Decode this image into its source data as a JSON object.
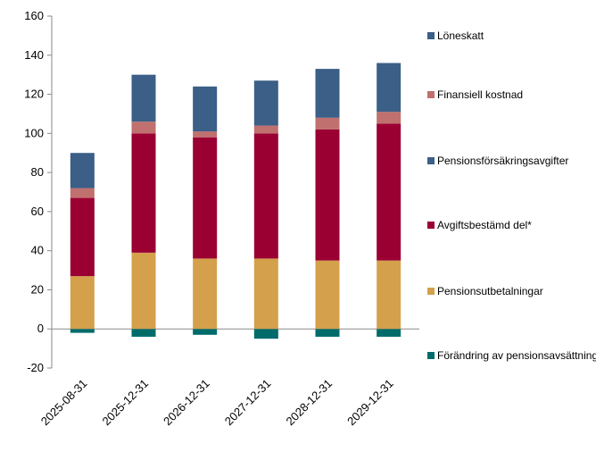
{
  "chart_data": {
    "type": "bar",
    "stacked": true,
    "categories": [
      "2025-08-31",
      "2025-12-31",
      "2026-12-31",
      "2027-12-31",
      "2028-12-31",
      "2029-12-31"
    ],
    "ylim": [
      -20,
      160
    ],
    "yticks": [
      -20,
      0,
      20,
      40,
      60,
      80,
      100,
      120,
      140,
      160
    ],
    "grid": false,
    "legend_position": "right",
    "series": [
      {
        "name": "Förändring av pensionsavsättning",
        "color": "#006b6b",
        "values": [
          -2,
          -4,
          -3,
          -5,
          -4,
          -4
        ]
      },
      {
        "name": "Pensionsutbetalningar",
        "color": "#d4a04c",
        "values": [
          27,
          39,
          36,
          36,
          35,
          35
        ]
      },
      {
        "name": "Avgiftsbestämd del*",
        "color": "#9b0033",
        "values": [
          40,
          61,
          62,
          64,
          67,
          70
        ]
      },
      {
        "name": "Pensionsförsäkringsavgifter",
        "color": "#3b5f87",
        "values": [
          0,
          0,
          0,
          0,
          0,
          0
        ]
      },
      {
        "name": "Finansiell kostnad",
        "color": "#c0706e",
        "values": [
          5,
          6,
          3,
          4,
          6,
          6
        ]
      },
      {
        "name": "Löneskatt",
        "color": "#3b5f87",
        "values": [
          18,
          24,
          23,
          23,
          25,
          25
        ]
      }
    ],
    "legend_order": [
      "Löneskatt",
      "Finansiell kostnad",
      "Pensionsförsäkringsavgifter",
      "Avgiftsbestämd del*",
      "Pensionsutbetalningar",
      "Förändring av pensionsavsättning"
    ]
  }
}
